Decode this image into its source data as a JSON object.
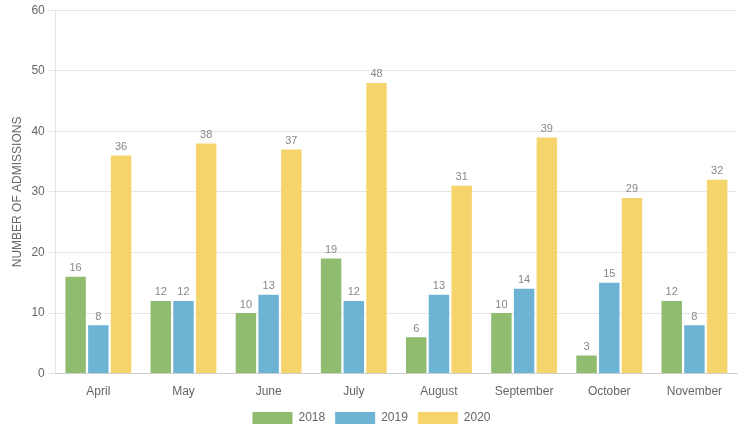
{
  "chart_data": {
    "type": "bar",
    "ylabel": "NUMBER OF ADMISSIONS",
    "categories": [
      "April",
      "May",
      "June",
      "July",
      "August",
      "September",
      "October",
      "November"
    ],
    "series": [
      {
        "name": "2018",
        "color": "#8fbc6e",
        "values": [
          16,
          12,
          10,
          19,
          6,
          10,
          3,
          12
        ]
      },
      {
        "name": "2019",
        "color": "#6db3d4",
        "values": [
          8,
          12,
          13,
          12,
          13,
          14,
          15,
          8
        ]
      },
      {
        "name": "2020",
        "color": "#f5d46b",
        "values": [
          36,
          38,
          37,
          48,
          31,
          39,
          29,
          32
        ]
      }
    ],
    "ylim": [
      0,
      60
    ],
    "yticks": [
      0,
      10,
      20,
      30,
      40,
      50,
      60
    ],
    "grid": true,
    "legend": "bottom",
    "data_labels": true
  }
}
